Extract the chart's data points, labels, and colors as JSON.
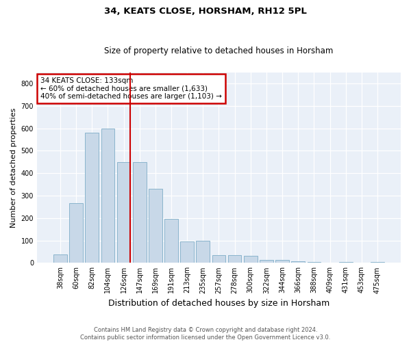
{
  "title": "34, KEATS CLOSE, HORSHAM, RH12 5PL",
  "subtitle": "Size of property relative to detached houses in Horsham",
  "xlabel": "Distribution of detached houses by size in Horsham",
  "ylabel": "Number of detached properties",
  "categories": [
    "38sqm",
    "60sqm",
    "82sqm",
    "104sqm",
    "126sqm",
    "147sqm",
    "169sqm",
    "191sqm",
    "213sqm",
    "235sqm",
    "257sqm",
    "278sqm",
    "300sqm",
    "322sqm",
    "344sqm",
    "366sqm",
    "388sqm",
    "409sqm",
    "431sqm",
    "453sqm",
    "475sqm"
  ],
  "values": [
    38,
    265,
    580,
    600,
    450,
    450,
    330,
    195,
    95,
    100,
    35,
    35,
    30,
    12,
    12,
    8,
    5,
    2,
    5,
    2,
    5
  ],
  "bar_color": "#c8d8e8",
  "bar_edge_color": "#8ab4cc",
  "vline_color": "#cc0000",
  "vline_index": 4,
  "annotation_box_color": "#cc0000",
  "annotation_line1": "34 KEATS CLOSE: 133sqm",
  "annotation_line2": "← 60% of detached houses are smaller (1,633)",
  "annotation_line3": "40% of semi-detached houses are larger (1,103) →",
  "bg_color": "#eaf0f8",
  "footer_line1": "Contains HM Land Registry data © Crown copyright and database right 2024.",
  "footer_line2": "Contains public sector information licensed under the Open Government Licence v3.0.",
  "ylim": [
    0,
    850
  ],
  "yticks": [
    0,
    100,
    200,
    300,
    400,
    500,
    600,
    700,
    800
  ]
}
